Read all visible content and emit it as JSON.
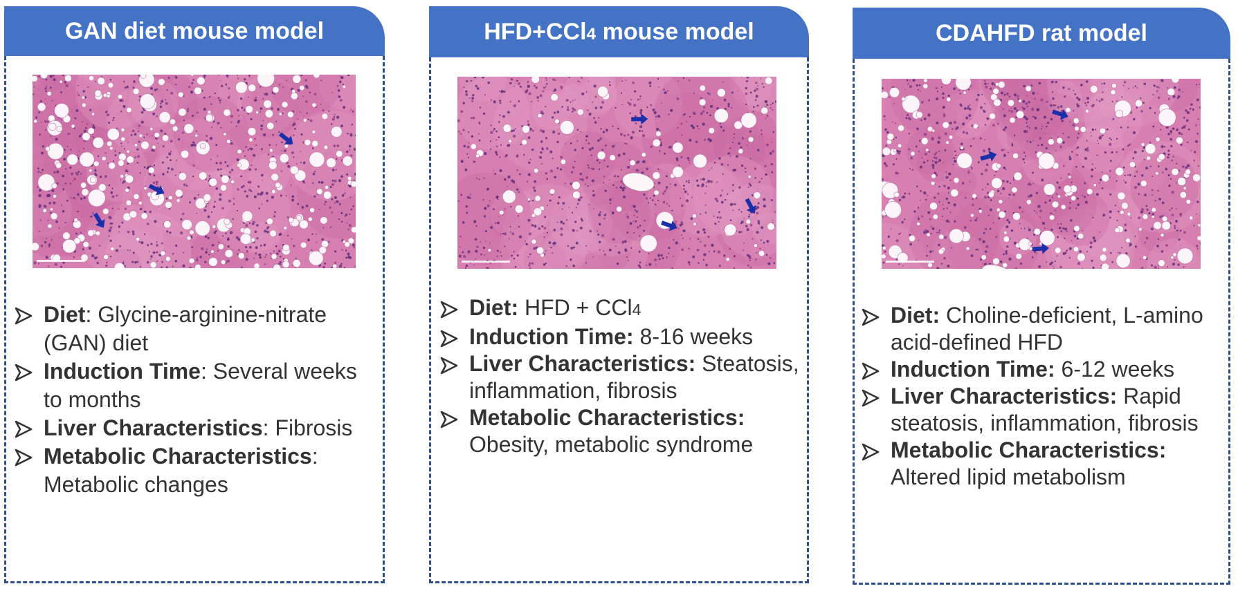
{
  "colors": {
    "header_bg": "#4472c4",
    "header_text": "#ffffff",
    "border": "#2e4f8f",
    "body_text": "#333333",
    "tissue": "#d981b2",
    "arrow": "#1a2fa8"
  },
  "panels": [
    {
      "title": "GAN diet mouse model",
      "image_label": "histology-gan",
      "items": [
        {
          "term": "Diet",
          "sep": ":",
          "text": " Glycine-arginine-nitrate (GAN) diet"
        },
        {
          "term": "Induction Time",
          "sep": ":",
          "text": " Several weeks to months"
        },
        {
          "term": "Liver Characteristics",
          "sep": ":",
          "text": " Fibrosis"
        },
        {
          "term": "Metabolic Characteristics",
          "sep": ":",
          "text": " Metabolic changes"
        }
      ]
    },
    {
      "title_main": "HFD+CCl",
      "title_sub": "4",
      "title_rest": " mouse model",
      "image_label": "histology-hfd-ccl4",
      "items": [
        {
          "term": "Diet:",
          "text": " HFD + CCl",
          "text_sub": "4"
        },
        {
          "term": "Induction Time:",
          "text": " 8-16 weeks"
        },
        {
          "term": "Liver Characteristics:",
          "text": " Steatosis, inflammation, fibrosis"
        },
        {
          "term": "Metabolic Characteristics:",
          "text": " Obesity, metabolic syndrome"
        }
      ]
    },
    {
      "title": "CDAHFD rat model",
      "image_label": "histology-cdahfd",
      "items": [
        {
          "term": "Diet:",
          "text": " Choline-deficient, L-amino acid-defined HFD"
        },
        {
          "term": "Induction Time:",
          "text": " 6-12 weeks"
        },
        {
          "term": "Liver Characteristics:",
          "text": " Rapid steatosis, inflammation, fibrosis"
        },
        {
          "term": "Metabolic Characteristics:",
          "text": " Altered lipid metabolism"
        }
      ]
    }
  ]
}
